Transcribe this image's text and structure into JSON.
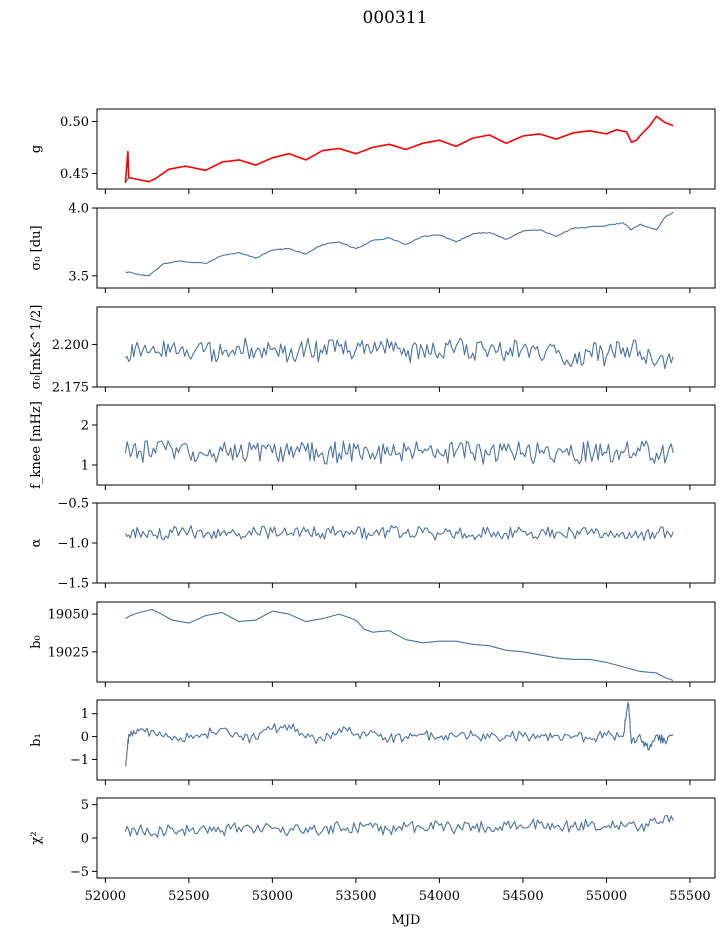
{
  "title": "000311",
  "xlabel": "MJD",
  "series_color": "#4c72a4",
  "overlay_color": "#ff0000",
  "chart_data": [
    {
      "type": "line",
      "ylabel": "g",
      "xlim": [
        51950,
        55650
      ],
      "ylim": [
        0.435,
        0.512
      ],
      "yticks": [
        0.45,
        0.5
      ],
      "ytick_labels": [
        "0.45",
        "0.50"
      ],
      "series": [
        {
          "x": [
            52120,
            52140,
            52200,
            52260,
            52300,
            52380,
            52480,
            52600,
            52700,
            52800,
            52900,
            53000,
            53100,
            53200,
            53300,
            53400,
            53500,
            53600,
            53700,
            53800,
            53900,
            54000,
            54100,
            54200,
            54300,
            54400,
            54500,
            54600,
            54700,
            54800,
            54900,
            55000,
            55060,
            55120,
            55150,
            55180,
            55200,
            55260,
            55300,
            55350,
            55400
          ],
          "y": [
            0.441,
            0.446,
            0.444,
            0.442,
            0.445,
            0.454,
            0.457,
            0.453,
            0.461,
            0.463,
            0.458,
            0.465,
            0.469,
            0.463,
            0.472,
            0.474,
            0.469,
            0.475,
            0.478,
            0.473,
            0.479,
            0.482,
            0.476,
            0.484,
            0.487,
            0.479,
            0.486,
            0.488,
            0.483,
            0.489,
            0.491,
            0.488,
            0.492,
            0.49,
            0.48,
            0.482,
            0.486,
            0.496,
            0.505,
            0.499,
            0.496
          ]
        }
      ],
      "overlay": {
        "x": [
          52120,
          52135,
          52140,
          52200,
          52260,
          52300,
          52380,
          52480,
          52600,
          52700,
          52800,
          52900,
          53000,
          53100,
          53200,
          53300,
          53400,
          53500,
          53600,
          53700,
          53800,
          53900,
          54000,
          54100,
          54200,
          54300,
          54400,
          54500,
          54600,
          54700,
          54800,
          54900,
          55000,
          55060,
          55120,
          55150,
          55180,
          55200,
          55260,
          55300,
          55350,
          55400
        ],
        "y": [
          0.441,
          0.471,
          0.446,
          0.444,
          0.442,
          0.445,
          0.454,
          0.457,
          0.453,
          0.461,
          0.463,
          0.458,
          0.465,
          0.469,
          0.463,
          0.472,
          0.474,
          0.469,
          0.475,
          0.478,
          0.473,
          0.479,
          0.482,
          0.476,
          0.484,
          0.487,
          0.479,
          0.486,
          0.488,
          0.483,
          0.489,
          0.491,
          0.488,
          0.492,
          0.49,
          0.48,
          0.482,
          0.486,
          0.496,
          0.505,
          0.499,
          0.496
        ]
      }
    },
    {
      "type": "line",
      "ylabel": "σ₀ [du]",
      "xlim": [
        51950,
        55650
      ],
      "ylim": [
        3.41,
        4.0
      ],
      "yticks": [
        3.5,
        4.0
      ],
      "ytick_labels": [
        "3.5",
        "4.0"
      ],
      "series": [
        {
          "x": [
            52120,
            52200,
            52260,
            52350,
            52450,
            52600,
            52700,
            52800,
            52900,
            53000,
            53100,
            53200,
            53300,
            53400,
            53500,
            53600,
            53700,
            53800,
            53900,
            54000,
            54100,
            54200,
            54300,
            54400,
            54500,
            54600,
            54700,
            54800,
            54900,
            55000,
            55100,
            55150,
            55200,
            55250,
            55300,
            55350,
            55400
          ],
          "y": [
            3.53,
            3.51,
            3.5,
            3.59,
            3.61,
            3.59,
            3.65,
            3.67,
            3.63,
            3.69,
            3.7,
            3.66,
            3.73,
            3.75,
            3.7,
            3.76,
            3.78,
            3.73,
            3.79,
            3.8,
            3.75,
            3.81,
            3.82,
            3.77,
            3.83,
            3.84,
            3.79,
            3.85,
            3.86,
            3.87,
            3.89,
            3.84,
            3.88,
            3.86,
            3.84,
            3.93,
            3.97
          ]
        }
      ]
    },
    {
      "type": "line",
      "ylabel": "σ₀[mKs^1/2]",
      "xlim": [
        51950,
        55650
      ],
      "ylim": [
        2.175,
        2.222
      ],
      "yticks": [
        2.175,
        2.2
      ],
      "ytick_labels": [
        "2.175",
        "2.200"
      ],
      "series": [
        {
          "x": [
            52120,
            52200,
            52300,
            52400,
            52500,
            52600,
            52700,
            52800,
            52900,
            53000,
            53100,
            53200,
            53300,
            53400,
            53500,
            53600,
            53700,
            53800,
            53900,
            54000,
            54100,
            54200,
            54300,
            54400,
            54500,
            54600,
            54700,
            54800,
            54900,
            55000,
            55100,
            55200,
            55300,
            55400
          ],
          "y": [
            2.192,
            2.198,
            2.195,
            2.199,
            2.193,
            2.197,
            2.194,
            2.199,
            2.196,
            2.197,
            2.193,
            2.198,
            2.195,
            2.199,
            2.197,
            2.196,
            2.198,
            2.193,
            2.197,
            2.195,
            2.199,
            2.195,
            2.197,
            2.196,
            2.198,
            2.193,
            2.195,
            2.19,
            2.196,
            2.193,
            2.198,
            2.196,
            2.189,
            2.193
          ]
        }
      ]
    },
    {
      "type": "line",
      "ylabel": "f_knee [mHz]",
      "xlim": [
        51950,
        55650
      ],
      "ylim": [
        0.5,
        2.5
      ],
      "yticks": [
        1,
        2
      ],
      "ytick_labels": [
        "1",
        "2"
      ],
      "series": [
        {
          "x": [
            52120,
            52200,
            52300,
            52400,
            52500,
            52600,
            52700,
            52800,
            52900,
            53000,
            53100,
            53200,
            53300,
            53400,
            53500,
            53600,
            53700,
            53800,
            53900,
            54000,
            54100,
            54200,
            54300,
            54400,
            54500,
            54600,
            54700,
            54800,
            54900,
            55000,
            55100,
            55200,
            55300,
            55400
          ],
          "y": [
            1.3,
            1.35,
            1.3,
            1.4,
            1.3,
            1.25,
            1.35,
            1.3,
            1.4,
            1.3,
            1.25,
            1.35,
            1.3,
            1.3,
            1.4,
            1.3,
            1.25,
            1.35,
            1.3,
            1.3,
            1.35,
            1.3,
            1.25,
            1.35,
            1.3,
            1.3,
            1.3,
            1.25,
            1.35,
            1.3,
            1.3,
            1.35,
            1.3,
            1.3
          ]
        }
      ]
    },
    {
      "type": "line",
      "ylabel": "α",
      "xlim": [
        51950,
        55650
      ],
      "ylim": [
        -1.5,
        -0.5
      ],
      "yticks": [
        -1.5,
        -1.0,
        -0.5
      ],
      "ytick_labels": [
        "−1.5",
        "−1.0",
        "−0.5"
      ],
      "series": [
        {
          "x": [
            52120,
            52200,
            52300,
            52400,
            52500,
            52600,
            52700,
            52800,
            52900,
            53000,
            53100,
            53200,
            53300,
            53400,
            53500,
            53600,
            53700,
            53800,
            53900,
            54000,
            54100,
            54200,
            54300,
            54400,
            54500,
            54600,
            54700,
            54800,
            54900,
            55000,
            55100,
            55200,
            55300,
            55400
          ],
          "y": [
            -0.88,
            -0.86,
            -0.9,
            -0.87,
            -0.85,
            -0.89,
            -0.86,
            -0.88,
            -0.86,
            -0.87,
            -0.89,
            -0.86,
            -0.88,
            -0.85,
            -0.87,
            -0.9,
            -0.86,
            -0.88,
            -0.87,
            -0.89,
            -0.86,
            -0.9,
            -0.87,
            -0.88,
            -0.86,
            -0.89,
            -0.87,
            -0.88,
            -0.86,
            -0.88,
            -0.87,
            -0.9,
            -0.88,
            -0.86
          ]
        }
      ]
    },
    {
      "type": "line",
      "ylabel": "b₀",
      "xlim": [
        51950,
        55650
      ],
      "ylim": [
        19005,
        19058
      ],
      "yticks": [
        19025,
        19050
      ],
      "ytick_labels": [
        "19025",
        "19050"
      ],
      "series": [
        {
          "x": [
            52120,
            52150,
            52200,
            52280,
            52320,
            52400,
            52500,
            52600,
            52700,
            52800,
            52900,
            53000,
            53100,
            53200,
            53300,
            53400,
            53500,
            53550,
            53600,
            53700,
            53800,
            53900,
            54000,
            54100,
            54200,
            54300,
            54400,
            54500,
            54600,
            54700,
            54800,
            54900,
            55000,
            55100,
            55200,
            55300,
            55350,
            55400
          ],
          "y": [
            19047,
            19049,
            19051,
            19053,
            19051,
            19046,
            19044,
            19049,
            19051,
            19045,
            19046,
            19052,
            19050,
            19045,
            19047,
            19050,
            19046,
            19040,
            19038,
            19039,
            19033,
            19031,
            19032,
            19032,
            19030,
            19029,
            19026,
            19025,
            19023,
            19021,
            19020,
            19020,
            19018,
            19015,
            19012,
            19011,
            19008,
            19006
          ]
        }
      ]
    },
    {
      "type": "line",
      "ylabel": "b₁",
      "xlim": [
        51950,
        55650
      ],
      "ylim": [
        -1.9,
        1.6
      ],
      "yticks": [
        -1,
        0,
        1
      ],
      "ytick_labels": [
        "−1",
        "0",
        "1"
      ],
      "series": [
        {
          "x": [
            52120,
            52140,
            52200,
            52300,
            52400,
            52500,
            52600,
            52700,
            52800,
            52900,
            53000,
            53100,
            53200,
            53300,
            53400,
            53500,
            53600,
            53700,
            53800,
            53900,
            54000,
            54100,
            54200,
            54300,
            54400,
            54500,
            54600,
            54700,
            54800,
            54900,
            55000,
            55100,
            55130,
            55150,
            55200,
            55250,
            55300,
            55350,
            55400
          ],
          "y": [
            -1.3,
            0.1,
            0.25,
            0.1,
            -0.15,
            -0.05,
            0.1,
            0.35,
            0.0,
            -0.1,
            0.35,
            0.5,
            -0.05,
            -0.15,
            0.35,
            0.1,
            0.2,
            -0.1,
            0.0,
            0.1,
            -0.05,
            0.0,
            0.05,
            -0.05,
            0.05,
            0.0,
            -0.05,
            0.05,
            0.0,
            -0.05,
            0.05,
            0.0,
            1.5,
            -0.3,
            0.1,
            -0.6,
            0.05,
            -0.2,
            0.05
          ]
        }
      ]
    },
    {
      "type": "line",
      "ylabel": "χ²",
      "xlim": [
        51950,
        55650
      ],
      "ylim": [
        -6,
        6
      ],
      "yticks": [
        -5,
        0,
        5
      ],
      "ytick_labels": [
        "−5",
        "0",
        "5"
      ],
      "series": [
        {
          "x": [
            52120,
            52200,
            52300,
            52400,
            52500,
            52600,
            52700,
            52800,
            52900,
            53000,
            53100,
            53200,
            53300,
            53400,
            53500,
            53600,
            53700,
            53800,
            53900,
            54000,
            54100,
            54200,
            54300,
            54400,
            54500,
            54600,
            54700,
            54800,
            54900,
            55000,
            55100,
            55200,
            55300,
            55400
          ],
          "y": [
            1.0,
            1.2,
            0.6,
            1.5,
            1.0,
            1.3,
            1.1,
            1.6,
            1.2,
            1.4,
            1.0,
            1.5,
            1.1,
            1.8,
            1.4,
            1.6,
            1.2,
            1.7,
            1.5,
            1.9,
            1.4,
            1.8,
            1.6,
            2.0,
            1.5,
            2.2,
            1.8,
            1.7,
            2.0,
            1.6,
            1.9,
            1.5,
            2.3,
            2.6
          ]
        }
      ]
    }
  ],
  "xticks": [
    52000,
    52500,
    53000,
    53500,
    54000,
    54500,
    55000,
    55500
  ],
  "xtick_labels": [
    "52000",
    "52500",
    "53000",
    "53500",
    "54000",
    "54500",
    "55000",
    "55500"
  ]
}
